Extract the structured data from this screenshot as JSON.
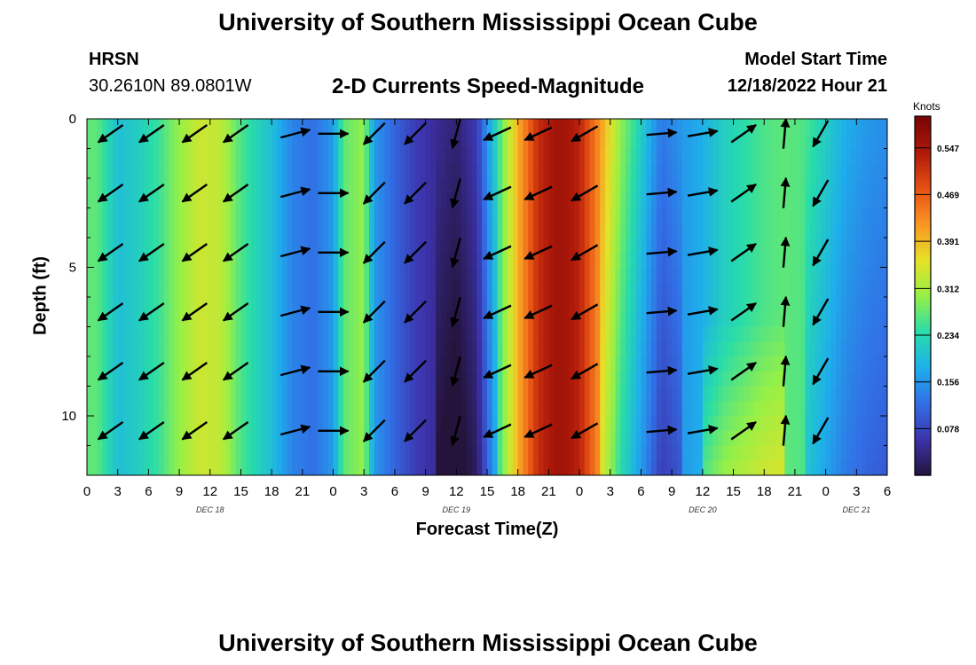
{
  "page": {
    "title_top": "University of Southern Mississippi Ocean Cube",
    "title_bottom": "University of Southern Mississippi Ocean Cube",
    "station_name": "HRSN",
    "station_coords": "30.2610N  89.0801W",
    "model_start_label": "Model Start Time",
    "model_start_value": "12/18/2022 Hour 21"
  },
  "chart_data": {
    "type": "heatmap",
    "title": "2-D Currents Speed-Magnitude",
    "xlabel": "Forecast Time(Z)",
    "ylabel": "Depth (ft)",
    "colorbar_title": "Knots",
    "colorbar_ticks": [
      "0.547",
      "0.469",
      "0.391",
      "0.312",
      "0.234",
      "0.156",
      "0.078"
    ],
    "colorbar_values": [
      0.547,
      0.469,
      0.391,
      0.312,
      0.234,
      0.156,
      0.078
    ],
    "value_range": [
      0.0,
      0.6
    ],
    "x_range_hours": [
      0,
      78
    ],
    "x_tick_labels": [
      "0",
      "3",
      "6",
      "9",
      "12",
      "15",
      "18",
      "21",
      "0",
      "3",
      "6",
      "9",
      "12",
      "15",
      "18",
      "21",
      "0",
      "3",
      "6",
      "9",
      "12",
      "15",
      "18",
      "21",
      "0",
      "3",
      "6"
    ],
    "x_date_labels": [
      {
        "label": "DEC 18",
        "hour": 12
      },
      {
        "label": "DEC 19",
        "hour": 36
      },
      {
        "label": "DEC 20",
        "hour": 60
      },
      {
        "label": "DEC 21",
        "hour": 75
      }
    ],
    "y_range_ft": [
      0,
      12
    ],
    "y_tick_labels": [
      "0",
      "5",
      "10"
    ],
    "y_tick_values": [
      0,
      5,
      10
    ],
    "speed_profile_hours": [
      0,
      1,
      3,
      5,
      7,
      9,
      11,
      13,
      15,
      18,
      20,
      22,
      24,
      25,
      27,
      28,
      30,
      32,
      34,
      36,
      38,
      40,
      42,
      44,
      46,
      48,
      50,
      52,
      54,
      56,
      58,
      60,
      62,
      64,
      66,
      68,
      70,
      72,
      74,
      76,
      78
    ],
    "speed_profile_knots": [
      0.27,
      0.27,
      0.2,
      0.22,
      0.25,
      0.3,
      0.34,
      0.33,
      0.26,
      0.2,
      0.14,
      0.12,
      0.16,
      0.27,
      0.3,
      0.16,
      0.11,
      0.07,
      0.05,
      0.03,
      0.07,
      0.24,
      0.4,
      0.52,
      0.56,
      0.53,
      0.42,
      0.3,
      0.22,
      0.13,
      0.16,
      0.18,
      0.22,
      0.24,
      0.26,
      0.27,
      0.26,
      0.22,
      0.18,
      0.16,
      0.15
    ],
    "vector_hours": [
      2.3,
      6.3,
      10.5,
      14.5,
      20.3,
      24.0,
      28.0,
      32.0,
      36.0,
      40.0,
      44.0,
      48.5,
      56.0,
      60.0,
      64.0,
      68.0,
      71.5
    ],
    "vector_depths_ft": [
      0.5,
      2.5,
      4.5,
      6.5,
      8.5,
      10.5
    ],
    "vector_angles_deg": [
      -145,
      -145,
      -145,
      -145,
      15,
      0,
      -135,
      -135,
      -105,
      -155,
      -155,
      -150,
      5,
      10,
      35,
      85,
      -120
    ]
  }
}
